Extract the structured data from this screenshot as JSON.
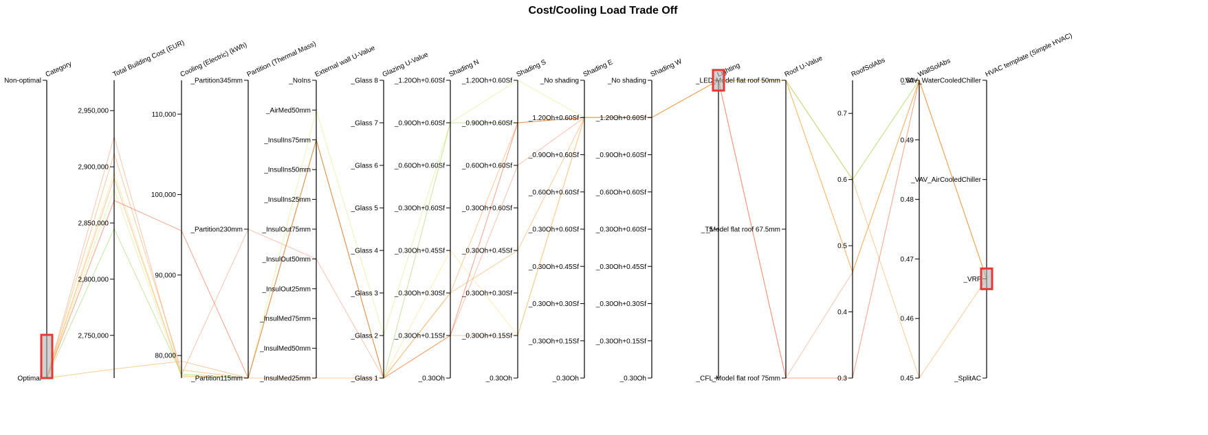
{
  "chart_data": {
    "type": "parallel-coordinates",
    "title": "Cost/Cooling Load Trade Off",
    "axes": [
      {
        "key": "category",
        "label": "Category",
        "scale": "ordinal",
        "values": [
          "Non-optimal",
          "Optimal"
        ],
        "ticks": [
          "Non-optimal",
          "Optimal"
        ]
      },
      {
        "key": "cost",
        "label": "Total Building Cost (EUR)",
        "scale": "linear",
        "domain": [
          2712000,
          2977000
        ],
        "ticks": [
          2750000,
          2800000,
          2850000,
          2900000,
          2950000
        ],
        "tick_labels": [
          "2,750,000",
          "2,800,000",
          "2,850,000",
          "2,900,000",
          "2,950,000"
        ]
      },
      {
        "key": "cooling",
        "label": "Cooling (Electric) (kWh)",
        "scale": "linear",
        "domain": [
          77200,
          114200
        ],
        "ticks": [
          80000,
          90000,
          100000,
          110000
        ],
        "tick_labels": [
          "80,000",
          "90,000",
          "100,000",
          "110,000"
        ]
      },
      {
        "key": "partition",
        "label": "Partition (Thermal Mass)",
        "scale": "ordinal",
        "values": [
          "_Partition345mm",
          "_Partition230mm",
          "_Partition115mm"
        ]
      },
      {
        "key": "wall_u",
        "label": "External wall U-Value",
        "scale": "ordinal",
        "values": [
          "_NoIns",
          "_AirMed50mm",
          "_InsulIns75mm",
          "_InsulIns50mm",
          "_InsulIns25mm",
          "_InsulOut75mm",
          "_InsulOut50mm",
          "_InsulOut25mm",
          "_InsulMed75mm",
          "_InsulMed50mm",
          "_InsulMed25mm"
        ]
      },
      {
        "key": "glazing",
        "label": "Glazing U-Value",
        "scale": "ordinal",
        "values": [
          "_Glass 8",
          "_Glass 7",
          "_Glass 6",
          "_Glass 5",
          "_Glass 4",
          "_Glass 3",
          "_Glass 2",
          "_Glass 1"
        ]
      },
      {
        "key": "shade_n",
        "label": "Shading N",
        "scale": "ordinal",
        "values": [
          "_1.20Oh+0.60Sf",
          "_0.90Oh+0.60Sf",
          "_0.60Oh+0.60Sf",
          "_0.30Oh+0.60Sf",
          "_0.30Oh+0.45Sf",
          "_0.30Oh+0.30Sf",
          "_0.30Oh+0.15Sf",
          "_0.30Oh"
        ]
      },
      {
        "key": "shade_s",
        "label": "Shading S",
        "scale": "ordinal",
        "values": [
          "_1.20Oh+0.60Sf",
          "_0.90Oh+0.60Sf",
          "_0.60Oh+0.60Sf",
          "_0.30Oh+0.60Sf",
          "_0.30Oh+0.45Sf",
          "_0.30Oh+0.30Sf",
          "_0.30Oh+0.15Sf",
          "_0.30Oh"
        ]
      },
      {
        "key": "shade_e",
        "label": "Shading E",
        "scale": "ordinal",
        "values": [
          "_No shading",
          "_1.20Oh+0.60Sf",
          "_0.90Oh+0.60Sf",
          "_0.60Oh+0.60Sf",
          "_0.30Oh+0.60Sf",
          "_0.30Oh+0.45Sf",
          "_0.30Oh+0.30Sf",
          "_0.30Oh+0.15Sf",
          "_0.30Oh"
        ]
      },
      {
        "key": "shade_w",
        "label": "Shading W",
        "scale": "ordinal",
        "values": [
          "_No shading",
          "_1.20Oh+0.60Sf",
          "_0.90Oh+0.60Sf",
          "_0.60Oh+0.60Sf",
          "_0.30Oh+0.60Sf",
          "_0.30Oh+0.45Sf",
          "_0.30Oh+0.30Sf",
          "_0.30Oh+0.15Sf",
          "_0.30Oh"
        ]
      },
      {
        "key": "lighting",
        "label": "Lighting",
        "scale": "ordinal",
        "values": [
          "_LED",
          "_T5",
          "_CFL"
        ]
      },
      {
        "key": "roof_u",
        "label": "Roof U-Value",
        "scale": "ordinal",
        "values": [
          "_Model flat roof 50mm",
          "_Model flat roof 67.5mm",
          "_Model flat roof 75mm"
        ]
      },
      {
        "key": "roof_abs",
        "label": "RoofSolAbs",
        "scale": "linear",
        "domain": [
          0.3,
          0.75
        ],
        "ticks": [
          0.3,
          0.4,
          0.5,
          0.6,
          0.7
        ],
        "tick_labels": [
          "0.3",
          "0.4",
          "0.5",
          "0.6",
          "0.7"
        ]
      },
      {
        "key": "wall_abs",
        "label": "WallSolAbs",
        "scale": "linear",
        "domain": [
          0.45,
          0.5
        ],
        "ticks": [
          0.45,
          0.46,
          0.47,
          0.48,
          0.49,
          0.5
        ],
        "tick_labels": [
          "0.45",
          "0.46",
          "0.47",
          "0.48",
          "0.49",
          "0.50"
        ]
      },
      {
        "key": "hvac",
        "label": "HVAC template (Simple HVAC)",
        "scale": "ordinal",
        "values": [
          "_VAV_WaterCooledChiller",
          "_VAV_AirCooledChiller",
          "_VRF",
          "_SplitAC"
        ]
      }
    ],
    "brushes": [
      {
        "axis": "category",
        "range": [
          "Optimal",
          "Optimal"
        ]
      },
      {
        "axis": "lighting",
        "range": [
          "_LED",
          "_LED"
        ]
      },
      {
        "axis": "hvac",
        "range": [
          "_VRF",
          "_VRF"
        ]
      }
    ],
    "series": [
      {
        "color": "#f4a582",
        "values": {
          "category": "Optimal",
          "cost": 2927000,
          "cooling": 77600,
          "partition": "_Partition230mm",
          "wall_u": "_InsulOut50mm",
          "glazing": "_Glass 1",
          "shade_n": "_0.30Oh+0.15Sf",
          "shade_s": "_0.60Oh+0.60Sf",
          "shade_e": "_1.20Oh+0.60Sf",
          "shade_w": "_1.20Oh+0.60Sf",
          "lighting": "_LED",
          "roof_u": "_Model flat roof 75mm",
          "roof_abs": 0.46,
          "wall_abs": 0.5,
          "hvac": "_VRF"
        }
      },
      {
        "color": "#fdae61",
        "values": {
          "category": "Optimal",
          "cost": 2912000,
          "cooling": 78200,
          "partition": "_Partition115mm",
          "wall_u": "_InsulIns75mm",
          "glazing": "_Glass 1",
          "shade_n": "_0.30Oh+0.30Sf",
          "shade_s": "_0.90Oh+0.60Sf",
          "shade_e": "_1.20Oh+0.60Sf",
          "shade_w": "_1.20Oh+0.60Sf",
          "lighting": "_LED",
          "roof_u": "_Model flat roof 50mm",
          "roof_abs": 0.6,
          "wall_abs": 0.45,
          "hvac": "_VRF"
        }
      },
      {
        "color": "#fee08b",
        "values": {
          "category": "Optimal",
          "cost": 2895000,
          "cooling": 77400,
          "partition": "_Partition115mm",
          "wall_u": "_InsulIns75mm",
          "glazing": "_Glass 1",
          "shade_n": "_0.30Oh+0.45Sf",
          "shade_s": "_0.30Oh+0.15Sf",
          "shade_e": "_1.20Oh+0.60Sf",
          "shade_w": "_1.20Oh+0.60Sf",
          "lighting": "_LED",
          "roof_u": "_Model flat roof 50mm",
          "roof_abs": 0.46,
          "wall_abs": 0.5,
          "hvac": "_VRF"
        }
      },
      {
        "color": "#fdae61",
        "values": {
          "category": "Optimal",
          "cost": 2890000,
          "cooling": 77500,
          "partition": "_Partition115mm",
          "wall_u": "_InsulIns75mm",
          "glazing": "_Glass 1",
          "shade_n": "_0.30Oh+0.30Sf",
          "shade_s": "_0.30Oh+0.45Sf",
          "shade_e": "_1.20Oh+0.60Sf",
          "shade_w": "_1.20Oh+0.60Sf",
          "lighting": "_LED",
          "roof_u": "_Model flat roof 50mm",
          "roof_abs": 0.46,
          "wall_abs": 0.5,
          "hvac": "_VRF"
        }
      },
      {
        "color": "#d9ef8b",
        "values": {
          "category": "Optimal",
          "cost": 2880000,
          "cooling": 77300,
          "partition": "_Partition115mm",
          "wall_u": "_AirMed50mm",
          "glazing": "_Glass 2",
          "shade_n": "_0.90Oh+0.60Sf",
          "shade_s": "_1.20Oh+0.60Sf",
          "shade_e": "_1.20Oh+0.60Sf",
          "shade_w": "_1.20Oh+0.60Sf",
          "lighting": "_LED",
          "roof_u": "_Model flat roof 50mm",
          "roof_abs": 0.6,
          "wall_abs": 0.5,
          "hvac": "_VRF"
        }
      },
      {
        "color": "#a6d96a",
        "values": {
          "category": "Optimal",
          "cost": 2845000,
          "cooling": 77700,
          "partition": "_Partition115mm",
          "wall_u": "_InsulIns75mm",
          "glazing": "_Glass 1",
          "shade_n": "_0.90Oh+0.60Sf",
          "shade_s": "_0.90Oh+0.60Sf",
          "shade_e": "_1.20Oh+0.60Sf",
          "shade_w": "_1.20Oh+0.60Sf",
          "lighting": "_LED",
          "roof_u": "_Model flat roof 50mm",
          "roof_abs": 0.6,
          "wall_abs": 0.5,
          "hvac": "_VRF"
        }
      },
      {
        "color": "#f46d43",
        "values": {
          "category": "Optimal",
          "cost": 2870000,
          "cooling": 95500,
          "partition": "_Partition115mm",
          "wall_u": "_InsulIns75mm",
          "glazing": "_Glass 1",
          "shade_n": "_0.30Oh+0.15Sf",
          "shade_s": "_0.90Oh+0.60Sf",
          "shade_e": "_1.20Oh+0.60Sf",
          "shade_w": "_1.20Oh+0.60Sf",
          "lighting": "_LED",
          "roof_u": "_Model flat roof 75mm",
          "roof_abs": 0.3,
          "wall_abs": 0.5,
          "hvac": "_VRF"
        }
      },
      {
        "color": "#fdae61",
        "values": {
          "category": "Optimal",
          "cost": 2720000,
          "cooling": 79300,
          "partition": "_Partition115mm",
          "wall_u": "_InsulMed25mm",
          "glazing": "_Glass 1",
          "shade_n": "_0.30Oh+0.15Sf",
          "shade_s": "_0.30Oh+0.15Sf",
          "shade_e": "_1.20Oh+0.60Sf",
          "shade_w": "_1.20Oh+0.60Sf",
          "lighting": "_LED",
          "roof_u": "_Model flat roof 50mm",
          "roof_abs": 0.46,
          "wall_abs": 0.5,
          "hvac": "_VRF"
        }
      }
    ]
  }
}
